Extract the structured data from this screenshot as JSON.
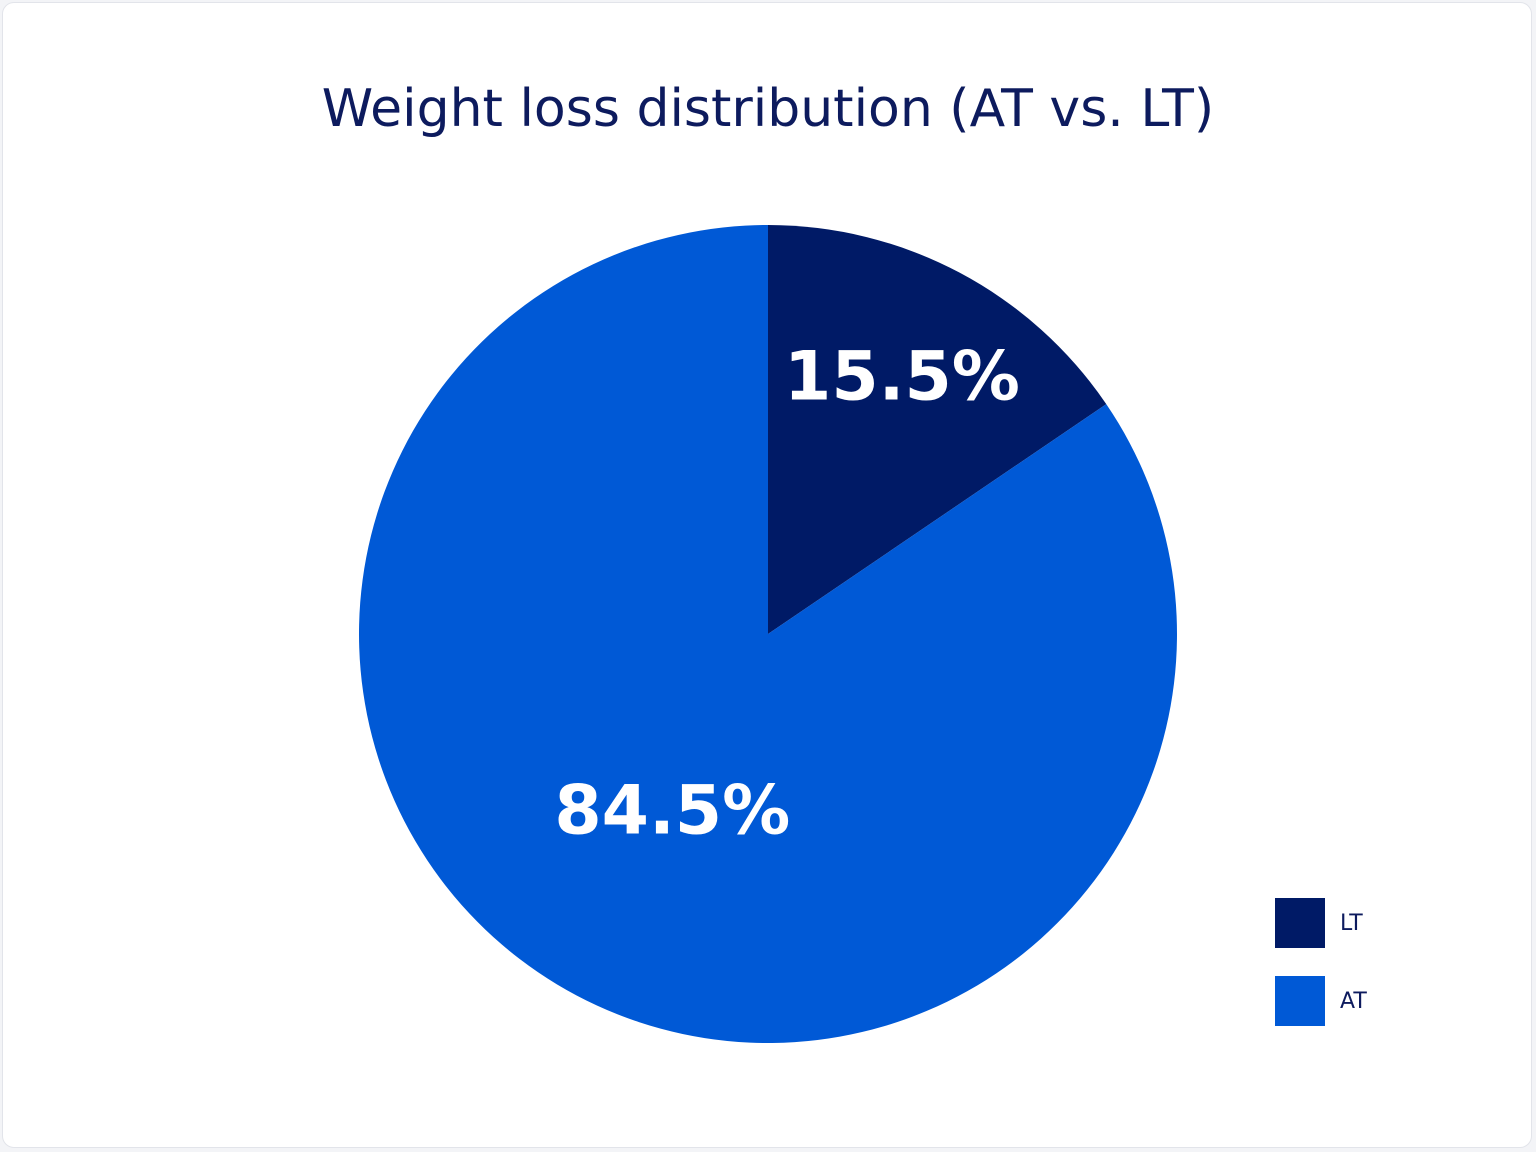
{
  "chart_data": {
    "type": "pie",
    "title": "Weight loss distribution (AT vs. LT)",
    "categories": [
      "LT",
      "AT"
    ],
    "values": [
      15.5,
      84.5
    ],
    "value_labels": [
      "15.5%",
      "84.5%"
    ],
    "colors": [
      "#001a66",
      "#0059d6"
    ],
    "legend": "bottom-right"
  }
}
